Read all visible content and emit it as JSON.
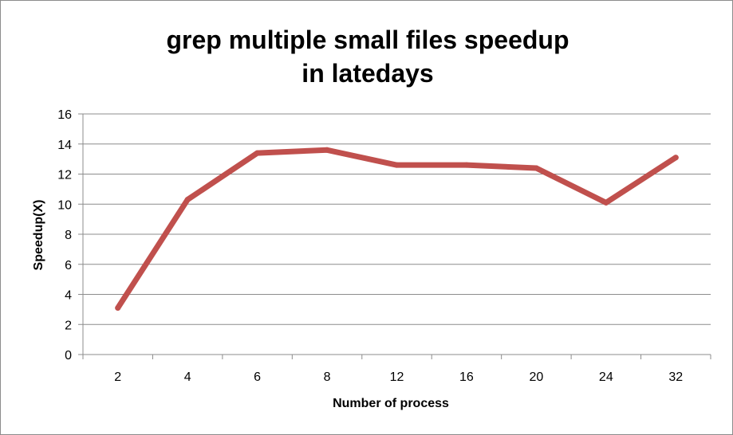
{
  "chart_data": {
    "type": "line",
    "title_lines": [
      "grep multiple small files speedup",
      "in latedays"
    ],
    "xlabel": "Number of process",
    "ylabel": "Speedup(X)",
    "categories": [
      "2",
      "4",
      "6",
      "8",
      "12",
      "16",
      "20",
      "24",
      "32"
    ],
    "series": [
      {
        "values": [
          3.1,
          10.3,
          13.4,
          13.6,
          12.6,
          12.6,
          12.4,
          10.1,
          13.1
        ],
        "color": "#c0504d"
      }
    ],
    "ylim": [
      0,
      16
    ],
    "yticks": [
      0,
      2,
      4,
      6,
      8,
      10,
      12,
      14,
      16
    ],
    "grid": true,
    "legend": "none"
  }
}
